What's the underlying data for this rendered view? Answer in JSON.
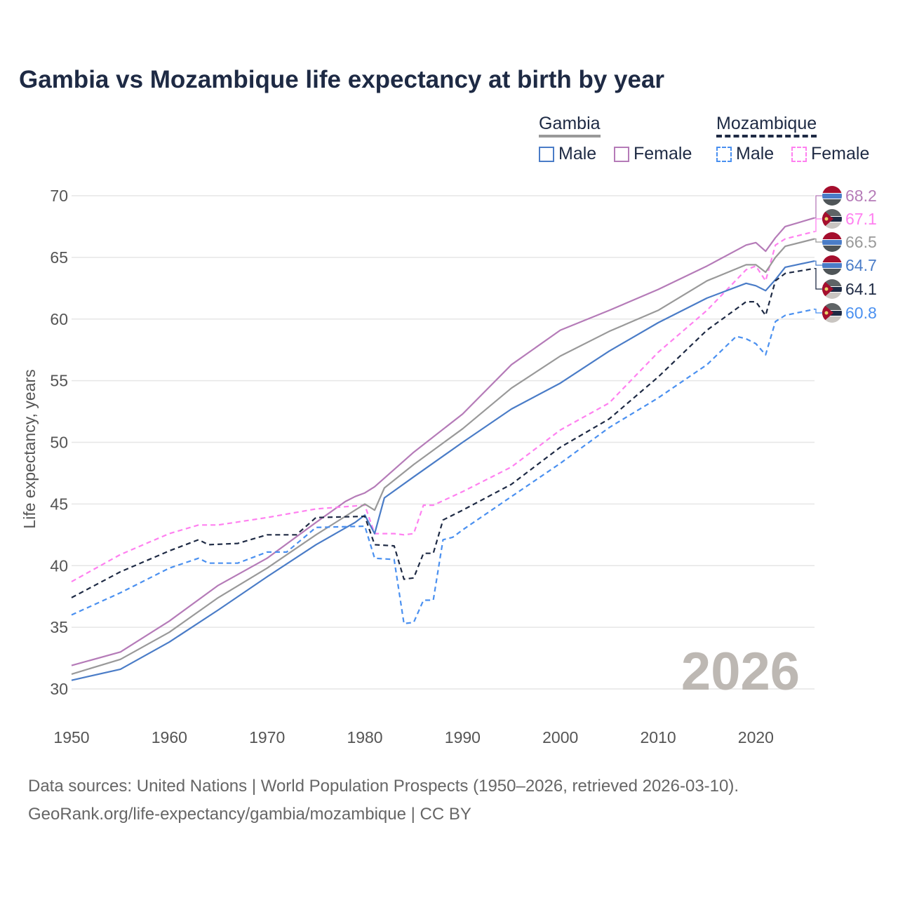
{
  "chart_data": {
    "type": "line",
    "title": "Gambia vs Mozambique life expectancy at birth by year",
    "xlabel": "",
    "ylabel": "Life expectancy, years",
    "xlim": [
      1950,
      2026
    ],
    "ylim": [
      30,
      70
    ],
    "x_ticks": [
      "1950",
      "1960",
      "1970",
      "1980",
      "1990",
      "2000",
      "2010",
      "2020"
    ],
    "y_ticks": [
      "30",
      "35",
      "40",
      "45",
      "50",
      "55",
      "60",
      "65",
      "70"
    ],
    "grid": true,
    "legend_position": "top-right",
    "legend": {
      "groups": [
        "Gambia",
        "Mozambique"
      ],
      "items": [
        "Male",
        "Female",
        "Male",
        "Female"
      ]
    },
    "year_watermark": "2026",
    "series": [
      {
        "name": "Gambia Female",
        "country": "Gambia",
        "color": "#b57bb8",
        "dashed": false,
        "flag": "gambia",
        "end_label": "68.2",
        "x": [
          1950,
          1955,
          1960,
          1965,
          1970,
          1975,
          1978,
          1979,
          1980,
          1981,
          1985,
          1990,
          1995,
          2000,
          2005,
          2010,
          2015,
          2019,
          2020,
          2021,
          2022,
          2023,
          2026
        ],
        "y": [
          31.9,
          33.0,
          35.5,
          38.4,
          40.6,
          43.5,
          45.2,
          45.6,
          45.9,
          46.4,
          49.2,
          52.3,
          56.3,
          59.1,
          60.7,
          62.4,
          64.3,
          66.0,
          66.2,
          65.5,
          66.6,
          67.5,
          68.2
        ]
      },
      {
        "name": "Mozambique Female",
        "country": "Mozambique",
        "color": "#ff80f0",
        "dashed": true,
        "flag": "mozambique",
        "end_label": "67.1",
        "x": [
          1950,
          1955,
          1960,
          1963,
          1965,
          1970,
          1975,
          1980,
          1981,
          1983,
          1984,
          1985,
          1986,
          1987,
          1990,
          1995,
          2000,
          2005,
          2010,
          2015,
          2019,
          2020,
          2021,
          2022,
          2023,
          2026
        ],
        "y": [
          38.7,
          40.9,
          42.6,
          43.3,
          43.3,
          43.9,
          44.6,
          44.9,
          42.6,
          42.6,
          42.5,
          42.6,
          44.9,
          44.9,
          46.0,
          48.0,
          51.0,
          53.2,
          57.3,
          60.7,
          64.0,
          64.3,
          63.1,
          66.0,
          66.5,
          67.1
        ]
      },
      {
        "name": "Gambia",
        "country": "Gambia",
        "color": "#999999",
        "dashed": false,
        "flag": "gambia",
        "end_label": "66.5",
        "x": [
          1950,
          1955,
          1960,
          1965,
          1970,
          1975,
          1978,
          1980,
          1981,
          1982,
          1985,
          1990,
          1995,
          2000,
          2005,
          2010,
          2015,
          2019,
          2020,
          2021,
          2022,
          2023,
          2026
        ],
        "y": [
          31.2,
          32.4,
          34.6,
          37.4,
          39.8,
          42.5,
          44.0,
          45.0,
          44.5,
          46.3,
          48.2,
          51.1,
          54.4,
          57.0,
          59.0,
          60.7,
          63.1,
          64.4,
          64.4,
          63.8,
          65.0,
          65.9,
          66.5
        ]
      },
      {
        "name": "Gambia Male",
        "country": "Gambia",
        "color": "#4a7cc7",
        "dashed": false,
        "flag": "gambia",
        "end_label": "64.7",
        "x": [
          1950,
          1955,
          1960,
          1965,
          1970,
          1975,
          1977,
          1979,
          1980,
          1981,
          1982,
          1985,
          1990,
          1995,
          2000,
          2005,
          2010,
          2015,
          2019,
          2020,
          2021,
          2022,
          2023,
          2026
        ],
        "y": [
          30.7,
          31.6,
          33.8,
          36.4,
          39.1,
          41.7,
          42.6,
          43.5,
          44.1,
          42.6,
          45.5,
          47.2,
          50.0,
          52.7,
          54.8,
          57.4,
          59.7,
          61.7,
          62.9,
          62.7,
          62.3,
          63.2,
          64.2,
          64.7
        ]
      },
      {
        "name": "Mozambique",
        "country": "Mozambique",
        "color": "#1e2a44",
        "dashed": true,
        "flag": "mozambique",
        "end_label": "64.1",
        "x": [
          1950,
          1955,
          1960,
          1963,
          1964,
          1967,
          1970,
          1973,
          1975,
          1980,
          1981,
          1983,
          1984,
          1985,
          1986,
          1987,
          1988,
          1990,
          1995,
          2000,
          2005,
          2010,
          2015,
          2019,
          2020,
          2021,
          2022,
          2023,
          2026
        ],
        "y": [
          37.4,
          39.5,
          41.2,
          42.1,
          41.7,
          41.8,
          42.5,
          42.5,
          43.9,
          44.0,
          41.7,
          41.6,
          38.9,
          39.0,
          41.0,
          41.0,
          43.7,
          44.5,
          46.6,
          49.6,
          51.9,
          55.3,
          59.1,
          61.4,
          61.4,
          60.3,
          63.1,
          63.7,
          64.1
        ]
      },
      {
        "name": "Mozambique Male",
        "country": "Mozambique",
        "color": "#4a90f0",
        "dashed": true,
        "flag": "mozambique",
        "end_label": "60.8",
        "x": [
          1950,
          1955,
          1960,
          1963,
          1964,
          1967,
          1970,
          1972,
          1975,
          1980,
          1981,
          1983,
          1984,
          1985,
          1986,
          1987,
          1988,
          1989,
          1990,
          1995,
          2000,
          2005,
          2010,
          2015,
          2018,
          2019,
          2020,
          2021,
          2022,
          2023,
          2026
        ],
        "y": [
          36.0,
          37.8,
          39.8,
          40.6,
          40.2,
          40.2,
          41.1,
          41.1,
          43.1,
          43.2,
          40.6,
          40.5,
          35.3,
          35.4,
          37.2,
          37.2,
          42.1,
          42.3,
          42.9,
          45.6,
          48.3,
          51.2,
          53.6,
          56.3,
          58.6,
          58.4,
          58.0,
          57.1,
          59.8,
          60.3,
          60.8
        ]
      }
    ]
  },
  "footer": {
    "line1": "Data sources: United Nations | World Population Prospects (1950–2026, retrieved 2026-03-10).",
    "line2": "GeoRank.org/life-expectancy/gambia/mozambique | CC BY"
  }
}
